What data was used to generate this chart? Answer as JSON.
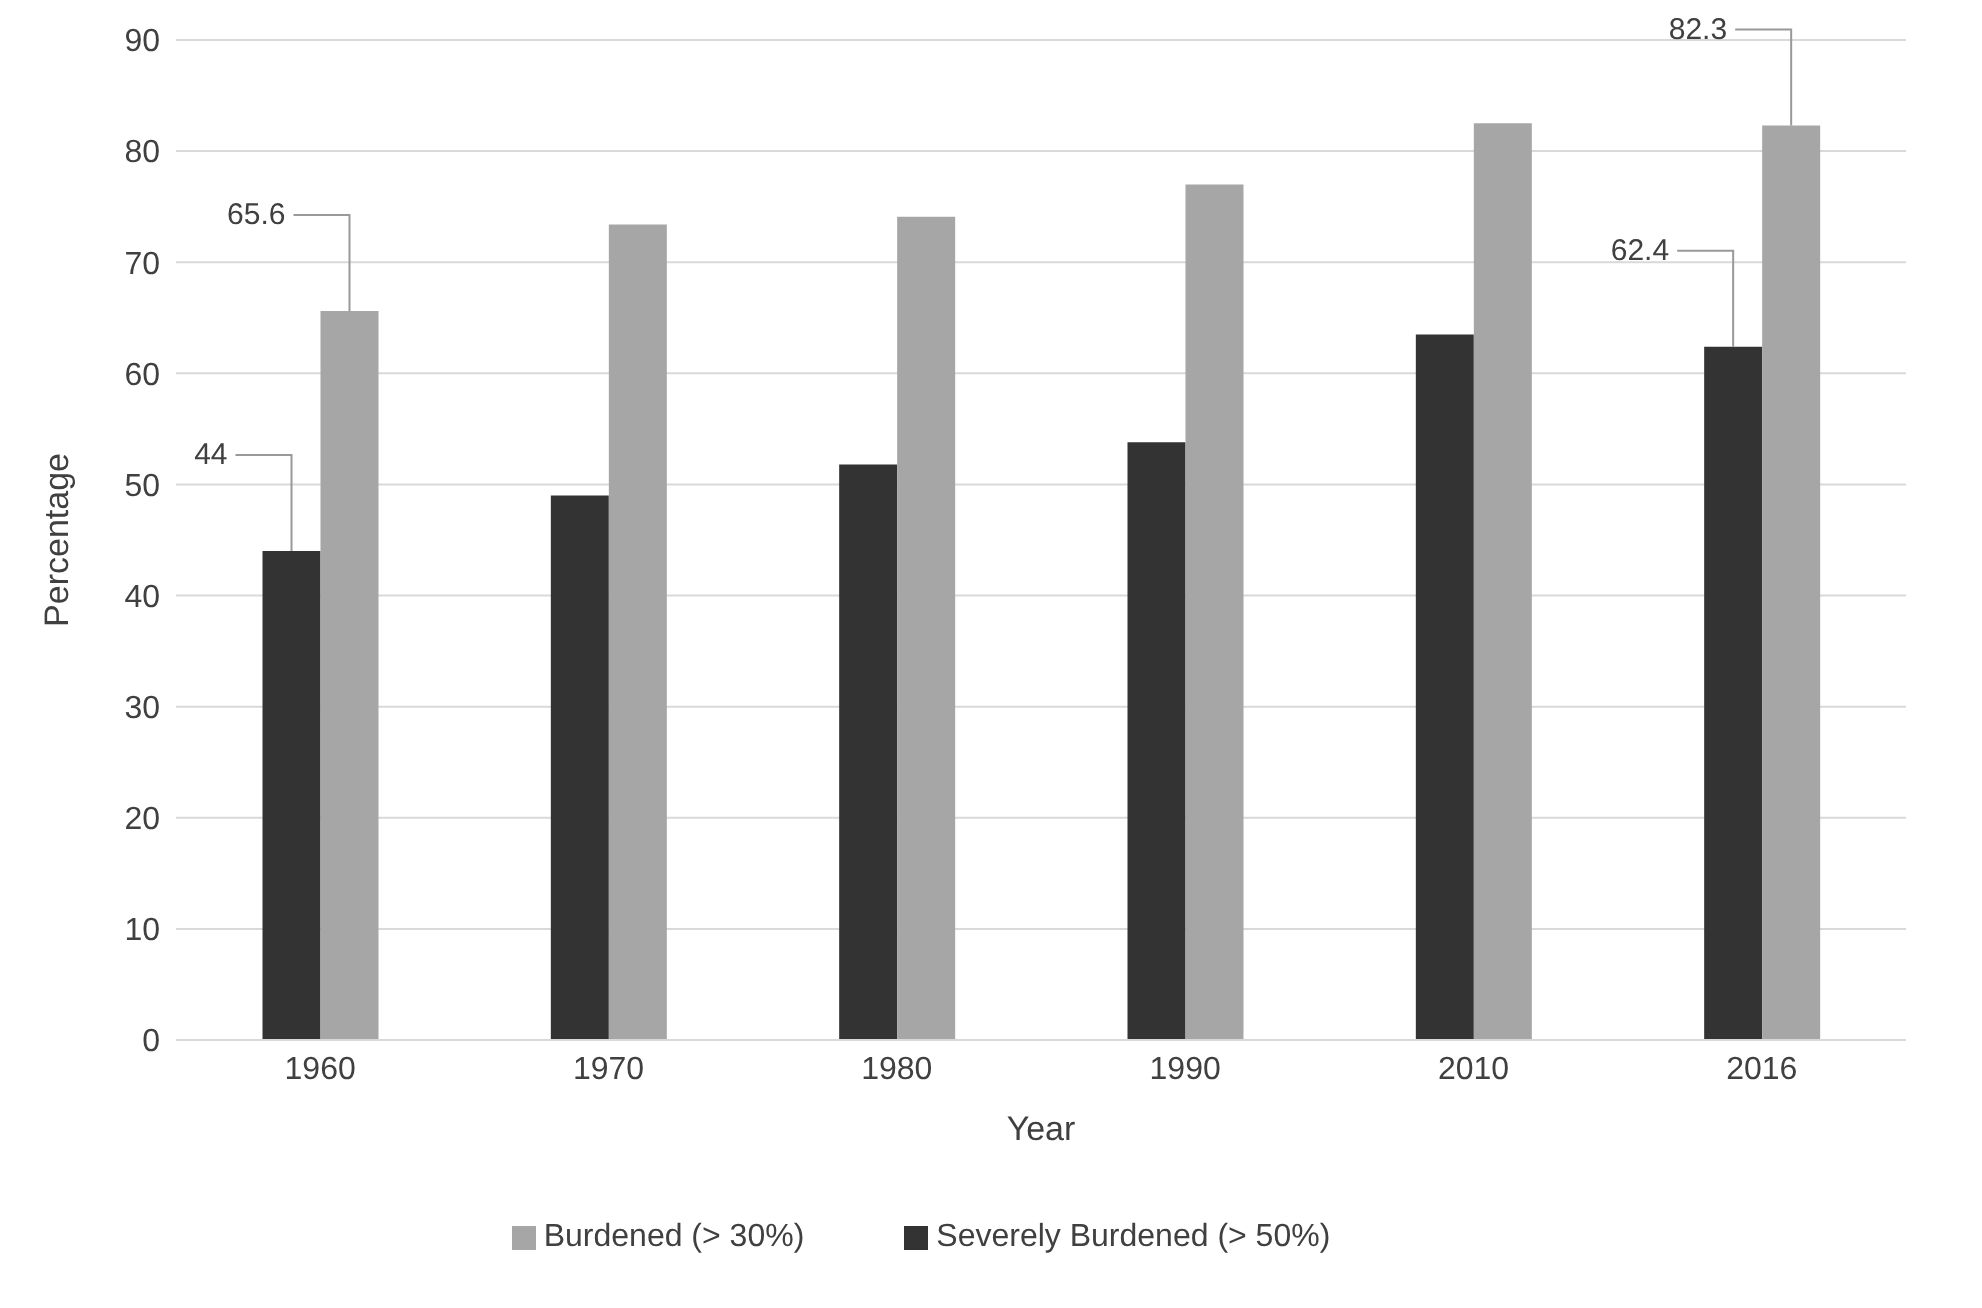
{
  "chart_data": {
    "type": "bar",
    "xlabel": "Year",
    "ylabel": "Percentage",
    "categories": [
      "1960",
      "1970",
      "1980",
      "1990",
      "2010",
      "2016"
    ],
    "series": [
      {
        "name": "Severely Burdened (> 50%)",
        "color": "#333333",
        "values": [
          44,
          49,
          51.8,
          53.8,
          63.5,
          62.4
        ],
        "value_labels": [
          "44",
          null,
          null,
          null,
          null,
          "62.4"
        ]
      },
      {
        "name": "Burdened (> 30%)",
        "color": "#a6a6a6",
        "values": [
          65.6,
          73.4,
          74.1,
          77,
          82.5,
          82.3
        ],
        "value_labels": [
          "65.6",
          null,
          null,
          null,
          null,
          "82.3"
        ]
      }
    ],
    "ylim": [
      0,
      90
    ],
    "yticks": [
      0,
      10,
      20,
      30,
      40,
      50,
      60,
      70,
      80,
      90
    ],
    "grid": "y",
    "legend": "bottom"
  }
}
